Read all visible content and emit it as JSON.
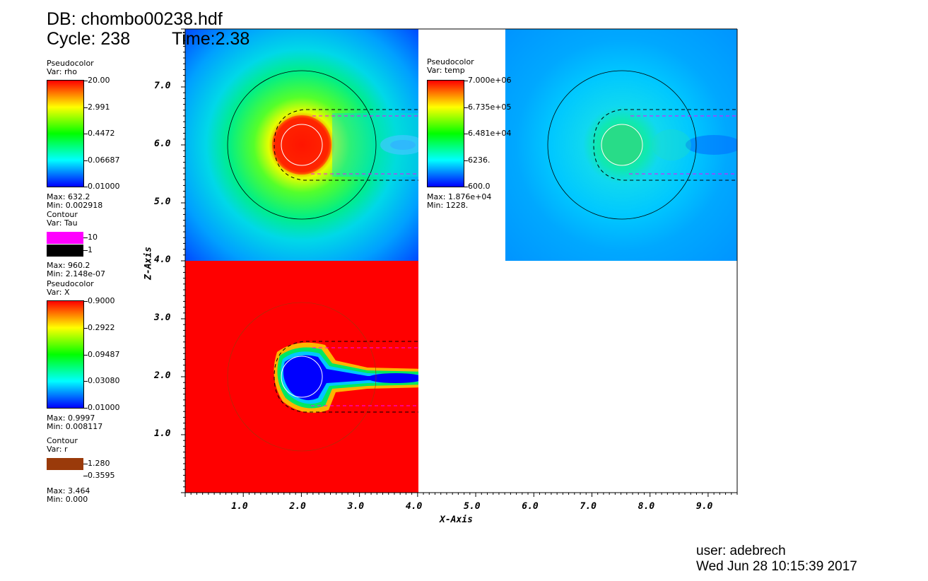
{
  "header": {
    "db_label": "DB: chombo00238.hdf",
    "cycle_label": "Cycle: 238",
    "time_label": "Time:2.38"
  },
  "legends": {
    "rho": {
      "kind": "Pseudocolor",
      "var": "Var: rho",
      "ticks": [
        "20.00",
        "2.991",
        "0.4472",
        "0.06687",
        "0.01000"
      ],
      "max": "Max: 632.2",
      "min": "Min: 0.002918"
    },
    "tau": {
      "kind": "Contour",
      "var": "Var: Tau",
      "levels": [
        "10",
        "1"
      ],
      "colors": [
        "#ff00ff",
        "#000000"
      ],
      "max": "Max: 960.2",
      "min": "Min: 2.148e-07"
    },
    "x": {
      "kind": "Pseudocolor",
      "var": "Var: X",
      "ticks": [
        "0.9000",
        "0.2922",
        "0.09487",
        "0.03080",
        "0.01000"
      ],
      "max": "Max: 0.9997",
      "min": "Min: 0.008117"
    },
    "r": {
      "kind": "Contour",
      "var": "Var: r",
      "levels": [
        "1.280",
        "0.3595"
      ],
      "colors": [
        "#9a3a0a"
      ],
      "max": "Max: 3.464",
      "min": "Min: 0.000"
    },
    "temp": {
      "kind": "Pseudocolor",
      "var": "Var: temp",
      "ticks": [
        "7.000e+06",
        "6.735e+05",
        "6.481e+04",
        "6236.",
        "600.0"
      ],
      "max": "Max: 1.876e+04",
      "min": "Min: 1228."
    }
  },
  "chart_data": {
    "type": "heatmap",
    "xlabel": "X-Axis",
    "ylabel": "Z-Axis",
    "xlim": [
      0,
      9.5
    ],
    "ylim": [
      0,
      8.0
    ],
    "x_ticks": [
      "1.0",
      "2.0",
      "3.0",
      "4.0",
      "5.0",
      "6.0",
      "7.0",
      "8.0",
      "9.0"
    ],
    "y_ticks": [
      "1.0",
      "2.0",
      "3.0",
      "4.0",
      "5.0",
      "6.0",
      "7.0"
    ],
    "panels": [
      {
        "var": "rho",
        "x_range": [
          0,
          4.0
        ],
        "y_range": [
          4.0,
          8.0
        ],
        "center": [
          2.0,
          6.0
        ]
      },
      {
        "var": "temp",
        "x_range": [
          5.5,
          9.5
        ],
        "y_range": [
          4.0,
          8.0
        ],
        "center": [
          7.5,
          6.0
        ]
      },
      {
        "var": "X",
        "x_range": [
          0,
          4.0
        ],
        "y_range": [
          0,
          4.0
        ],
        "center": [
          2.0,
          2.0
        ]
      }
    ]
  },
  "footer": {
    "user": "user: adebrech",
    "date": "Wed Jun 28 10:15:39 2017"
  }
}
